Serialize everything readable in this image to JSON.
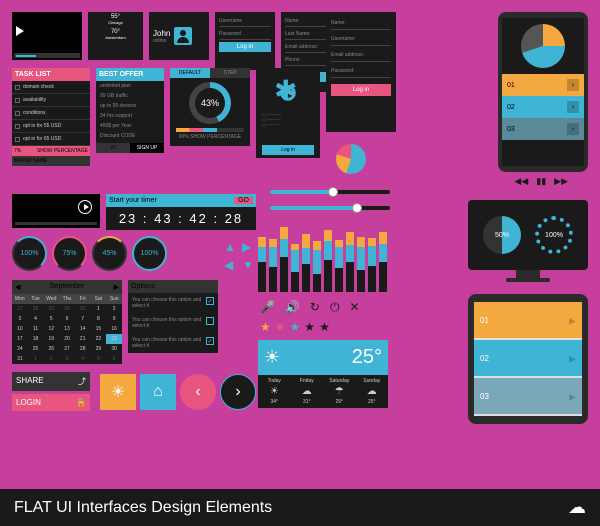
{
  "colors": {
    "pink": "#e8567f",
    "cyan": "#3fb4d4",
    "orange": "#f4a940",
    "dark": "#1a1a1a",
    "bg": "#c73f9d"
  },
  "video_small": {
    "label": "play"
  },
  "weather_sm": {
    "t1": "55°",
    "l1": "Chicago",
    "t2": "70°",
    "l2": "Amsterdam"
  },
  "profile": {
    "name": "John",
    "status": "online"
  },
  "login_sm": {
    "user": "Username",
    "pass": "Password",
    "btn": "Log in"
  },
  "form1": {
    "name": "Name:",
    "last": "Last Name:",
    "email": "Email address:",
    "phone": "Phone:",
    "btn": "Log in"
  },
  "form2": {
    "name": "Name:",
    "user": "Username:",
    "email": "Email address:",
    "pass": "Password:",
    "btn": "Log in"
  },
  "tasklist": {
    "title": "TASK LIST",
    "items": [
      "domain check",
      "availability",
      "conditions",
      "opt in for 55 USD",
      "opt in for 65 USD"
    ],
    "pct": "7%",
    "sp": "SHOW PERCENTAGE",
    "brand": "BRAND NAME"
  },
  "offer": {
    "title": "BEST OFFER",
    "lines": [
      "unlimited plan",
      "99 GB traffic",
      "up to 99 devices",
      "24 hrs support",
      "456$ per Year",
      "Discount CODE"
    ],
    "n": "20",
    "sign": "SIGN UP"
  },
  "radial": {
    "tabs": [
      "DEFAULT",
      "STEP"
    ],
    "pct": "43%",
    "sp": "60%",
    "label": "SHOW PERCENTAGE"
  },
  "timer": {
    "label": "Start your timer",
    "go": "GO",
    "time": "23 : 43 : 42 : 28"
  },
  "gauges": [
    "100%",
    "75%",
    "45%",
    "100%"
  ],
  "cal": {
    "month": "September",
    "days": [
      "Mon",
      "Tue",
      "Wed",
      "Thu",
      "Fri",
      "Sat",
      "Sun"
    ],
    "grid": [
      27,
      28,
      29,
      30,
      31,
      1,
      2,
      3,
      4,
      5,
      6,
      7,
      8,
      9,
      10,
      11,
      12,
      13,
      14,
      15,
      16,
      17,
      18,
      19,
      20,
      21,
      22,
      23,
      24,
      25,
      26,
      27,
      28,
      29,
      30,
      31,
      1,
      2,
      3,
      4,
      5,
      6
    ],
    "sel": 23
  },
  "opts": {
    "title": "Options",
    "text": "You can choose this option and select it"
  },
  "share": {
    "label": "SHARE"
  },
  "login": {
    "label": "LOGIN"
  },
  "eq": {
    "bars": [
      [
        10,
        15,
        30
      ],
      [
        8,
        20,
        25
      ],
      [
        12,
        18,
        35
      ],
      [
        6,
        22,
        20
      ],
      [
        14,
        16,
        28
      ],
      [
        9,
        24,
        18
      ],
      [
        11,
        19,
        32
      ],
      [
        7,
        21,
        24
      ],
      [
        13,
        17,
        30
      ],
      [
        10,
        23,
        22
      ],
      [
        8,
        20,
        26
      ],
      [
        12,
        18,
        30
      ]
    ]
  },
  "weather": {
    "temp": "25°",
    "days": [
      {
        "n": "Today",
        "i": "☀",
        "t": "34°"
      },
      {
        "n": "Friday",
        "i": "☁",
        "t": "31°"
      },
      {
        "n": "Saturday",
        "i": "☂",
        "t": "29°"
      },
      {
        "n": "Sunday",
        "i": "☁",
        "t": "25°"
      }
    ]
  },
  "phone": {
    "items": [
      "01",
      "02",
      "03"
    ]
  },
  "monitor": {
    "v1": "50%",
    "v2": "100%"
  },
  "tablet": {
    "items": [
      "01",
      "02",
      "03"
    ]
  },
  "footer": {
    "title": "FLAT UI Interfaces Design Elements"
  }
}
